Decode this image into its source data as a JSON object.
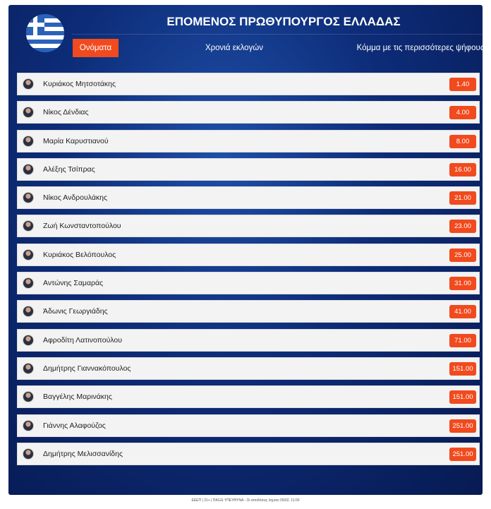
{
  "header": {
    "title": "ΕΠΟΜΕΝΟΣ ΠΡΩΘΥΠΟΥΡΓΟΣ ΕΛΛΑΔΑΣ",
    "flag_icon": "greek-flag-icon"
  },
  "tabs": [
    {
      "label": "Ονόματα",
      "active": true
    },
    {
      "label": "Χρονιά εκλογών"
    },
    {
      "label": "Κόμμα με τις περισσότερες ψήφους"
    }
  ],
  "colors": {
    "accent": "#f04a1e",
    "panel": "#0d2c78"
  },
  "candidates": [
    {
      "name": "Κυριάκος Μητσοτάκης",
      "odds": "1.40"
    },
    {
      "name": "Νίκος Δένδιας",
      "odds": "4.00"
    },
    {
      "name": "Μαρία Καρυστιανού",
      "odds": "8.00"
    },
    {
      "name": "Αλέξης Τσίπρας",
      "odds": "16.00"
    },
    {
      "name": "Νίκος Ανδρουλάκης",
      "odds": "21.00"
    },
    {
      "name": "Ζωή Κωνσταντοπούλου",
      "odds": "23.00"
    },
    {
      "name": "Κυριάκος Βελόπουλος",
      "odds": "25.00"
    },
    {
      "name": "Αντώνης Σαμαράς",
      "odds": "31.00"
    },
    {
      "name": "Άδωνις Γεωργιάδης",
      "odds": "41.00"
    },
    {
      "name": "Αφροδίτη Λατινοπούλου",
      "odds": "71.00"
    },
    {
      "name": "Δημήτρης Γιαννακόπουλος",
      "odds": "151.00"
    },
    {
      "name": "Βαγγέλης Μαρινάκης",
      "odds": "151.00"
    },
    {
      "name": "Γιάννης Αλαφούζος",
      "odds": "251.00"
    },
    {
      "name": "Δημήτρης Μελισσανίδης",
      "odds": "251.00"
    }
  ],
  "footer": "ΕΕΕΠ | 21+ | ΠΑΙΞΕ ΥΠΕΥΘΥΝΑ - Οι αποδόσεις ίσχυαν 05/02, 11:00"
}
